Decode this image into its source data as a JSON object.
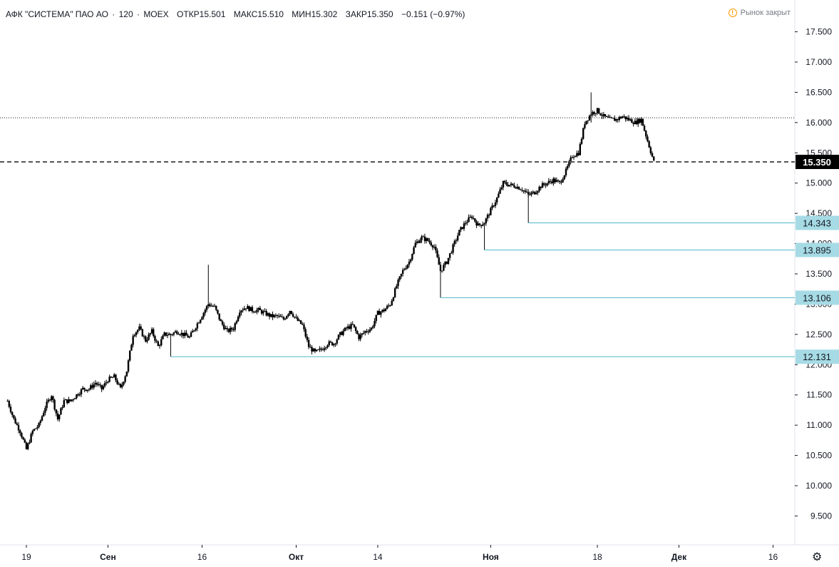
{
  "header": {
    "title": "АФК \"СИСТЕМА\" ПАО АО",
    "interval": "120",
    "exchange": "MOEX",
    "sep": "·",
    "open_label": "ОТКР",
    "open": "15.501",
    "high_label": "МАКС",
    "high": "15.510",
    "low_label": "МИН",
    "low": "15.302",
    "close_label": "ЗАКР",
    "close": "15.350",
    "change": "−0.151 (−0.97%)",
    "market_status": "Рынок закрыт",
    "alert_glyph": "!"
  },
  "colors": {
    "candle": "#000000",
    "hline": "#4fb7c8",
    "tag_bg": "#a6dbe5",
    "price_tag_bg": "#000000",
    "grid_axis": "#131722"
  },
  "icons": {
    "settings": "gear-icon",
    "market_closed": "alert-circle-icon"
  },
  "chart_data": {
    "type": "candlestick",
    "ylim": [
      9.15,
      17.9
    ],
    "y_ticks": [
      "9.500",
      "10.000",
      "10.500",
      "11.000",
      "11.500",
      "12.000",
      "12.500",
      "13.000",
      "13.500",
      "14.000",
      "14.500",
      "15.000",
      "15.500",
      "16.000",
      "16.500",
      "17.000",
      "17.500"
    ],
    "x_ticks": [
      {
        "label": "19",
        "date": "2019-08-19"
      },
      {
        "label": "Сен",
        "date": "2019-09-01"
      },
      {
        "label": "16",
        "date": "2019-09-16"
      },
      {
        "label": "Окт",
        "date": "2019-10-01"
      },
      {
        "label": "14",
        "date": "2019-10-14"
      },
      {
        "label": "Ноя",
        "date": "2019-11-01"
      },
      {
        "label": "18",
        "date": "2019-11-18"
      },
      {
        "label": "Дек",
        "date": "2019-12-01"
      },
      {
        "label": "16",
        "date": "2019-12-16"
      }
    ],
    "last_price": "15.350",
    "dotted_level": 16.08,
    "horizontal_lines": [
      {
        "value": 14.343,
        "label": "14.343",
        "start_date": "2019-11-07"
      },
      {
        "value": 13.895,
        "label": "13.895",
        "start_date": "2019-10-31"
      },
      {
        "value": 13.106,
        "label": "13.106",
        "start_date": "2019-10-24"
      },
      {
        "value": 12.131,
        "label": "12.131",
        "start_date": "2019-09-11"
      }
    ],
    "price_path": [
      [
        "2019-08-16",
        11.4
      ],
      [
        "2019-08-17",
        11.1
      ],
      [
        "2019-08-18",
        10.9
      ],
      [
        "2019-08-19",
        10.6
      ],
      [
        "2019-08-20",
        10.9
      ],
      [
        "2019-08-21",
        11.0
      ],
      [
        "2019-08-22",
        11.3
      ],
      [
        "2019-08-23",
        11.5
      ],
      [
        "2019-08-24",
        11.1
      ],
      [
        "2019-08-25",
        11.4
      ],
      [
        "2019-08-26",
        11.4
      ],
      [
        "2019-08-27",
        11.5
      ],
      [
        "2019-08-28",
        11.6
      ],
      [
        "2019-08-29",
        11.6
      ],
      [
        "2019-08-30",
        11.7
      ],
      [
        "2019-08-31",
        11.6
      ],
      [
        "2019-09-01",
        11.75
      ],
      [
        "2019-09-02",
        11.8
      ],
      [
        "2019-09-03",
        11.6
      ],
      [
        "2019-09-04",
        11.9
      ],
      [
        "2019-09-05",
        12.5
      ],
      [
        "2019-09-06",
        12.6
      ],
      [
        "2019-09-07",
        12.4
      ],
      [
        "2019-09-08",
        12.55
      ],
      [
        "2019-09-09",
        12.3
      ],
      [
        "2019-09-10",
        12.5
      ],
      [
        "2019-09-11",
        12.5
      ],
      [
        "2019-09-12",
        12.55
      ],
      [
        "2019-09-13",
        12.5
      ],
      [
        "2019-09-14",
        12.45
      ],
      [
        "2019-09-17",
        13.0
      ],
      [
        "2019-09-18",
        12.95
      ],
      [
        "2019-09-19",
        12.7
      ],
      [
        "2019-09-20",
        12.55
      ],
      [
        "2019-09-21",
        12.6
      ],
      [
        "2019-09-22",
        12.9
      ],
      [
        "2019-09-23",
        12.95
      ],
      [
        "2019-09-24",
        12.9
      ],
      [
        "2019-09-25",
        12.9
      ],
      [
        "2019-09-26",
        12.85
      ],
      [
        "2019-09-27",
        12.8
      ],
      [
        "2019-09-28",
        12.8
      ],
      [
        "2019-09-29",
        12.75
      ],
      [
        "2019-09-30",
        12.9
      ],
      [
        "2019-10-01",
        12.75
      ],
      [
        "2019-10-02",
        12.65
      ],
      [
        "2019-10-03",
        12.3
      ],
      [
        "2019-10-04",
        12.2
      ],
      [
        "2019-10-05",
        12.25
      ],
      [
        "2019-10-06",
        12.35
      ],
      [
        "2019-10-07",
        12.35
      ],
      [
        "2019-10-08",
        12.5
      ],
      [
        "2019-10-09",
        12.6
      ],
      [
        "2019-10-10",
        12.65
      ],
      [
        "2019-10-11",
        12.45
      ],
      [
        "2019-10-12",
        12.55
      ],
      [
        "2019-10-13",
        12.6
      ],
      [
        "2019-10-14",
        12.85
      ],
      [
        "2019-10-15",
        12.9
      ],
      [
        "2019-10-16",
        13.0
      ],
      [
        "2019-10-17",
        13.3
      ],
      [
        "2019-10-18",
        13.55
      ],
      [
        "2019-10-19",
        13.7
      ],
      [
        "2019-10-20",
        14.0
      ],
      [
        "2019-10-21",
        14.1
      ],
      [
        "2019-10-22",
        14.05
      ],
      [
        "2019-10-23",
        13.95
      ],
      [
        "2019-10-24",
        13.55
      ],
      [
        "2019-10-25",
        13.7
      ],
      [
        "2019-10-26",
        13.95
      ],
      [
        "2019-10-27",
        14.2
      ],
      [
        "2019-10-28",
        14.35
      ],
      [
        "2019-10-29",
        14.45
      ],
      [
        "2019-10-30",
        14.3
      ],
      [
        "2019-10-31",
        14.35
      ],
      [
        "2019-11-01",
        14.55
      ],
      [
        "2019-11-02",
        14.75
      ],
      [
        "2019-11-03",
        15.0
      ],
      [
        "2019-11-04",
        14.97
      ],
      [
        "2019-11-05",
        14.95
      ],
      [
        "2019-11-06",
        14.9
      ],
      [
        "2019-11-07",
        14.8
      ],
      [
        "2019-11-08",
        14.85
      ],
      [
        "2019-11-09",
        14.95
      ],
      [
        "2019-11-10",
        15.0
      ],
      [
        "2019-11-11",
        15.05
      ],
      [
        "2019-11-12",
        15.0
      ],
      [
        "2019-11-13",
        15.2
      ],
      [
        "2019-11-14",
        15.45
      ],
      [
        "2019-11-15",
        15.5
      ],
      [
        "2019-11-16",
        16.0
      ],
      [
        "2019-11-17",
        16.15
      ],
      [
        "2019-11-18",
        16.2
      ],
      [
        "2019-11-19",
        16.1
      ],
      [
        "2019-11-20",
        16.05
      ],
      [
        "2019-11-21",
        16.05
      ],
      [
        "2019-11-22",
        16.1
      ],
      [
        "2019-11-23",
        16.05
      ],
      [
        "2019-11-24",
        16.0
      ],
      [
        "2019-11-25",
        16.05
      ],
      [
        "2019-11-26",
        15.7
      ],
      [
        "2019-11-27",
        15.35
      ]
    ],
    "wicks": [
      {
        "date": "2019-09-17",
        "low": 13.0,
        "high": 13.65
      },
      {
        "date": "2019-11-17",
        "low": 16.0,
        "high": 16.5
      },
      {
        "date": "2019-11-07",
        "low": 14.343,
        "high": 14.9
      },
      {
        "date": "2019-10-31",
        "low": 13.895,
        "high": 14.35
      },
      {
        "date": "2019-10-24",
        "low": 13.106,
        "high": 13.7
      },
      {
        "date": "2019-09-11",
        "low": 12.131,
        "high": 12.5
      }
    ]
  }
}
